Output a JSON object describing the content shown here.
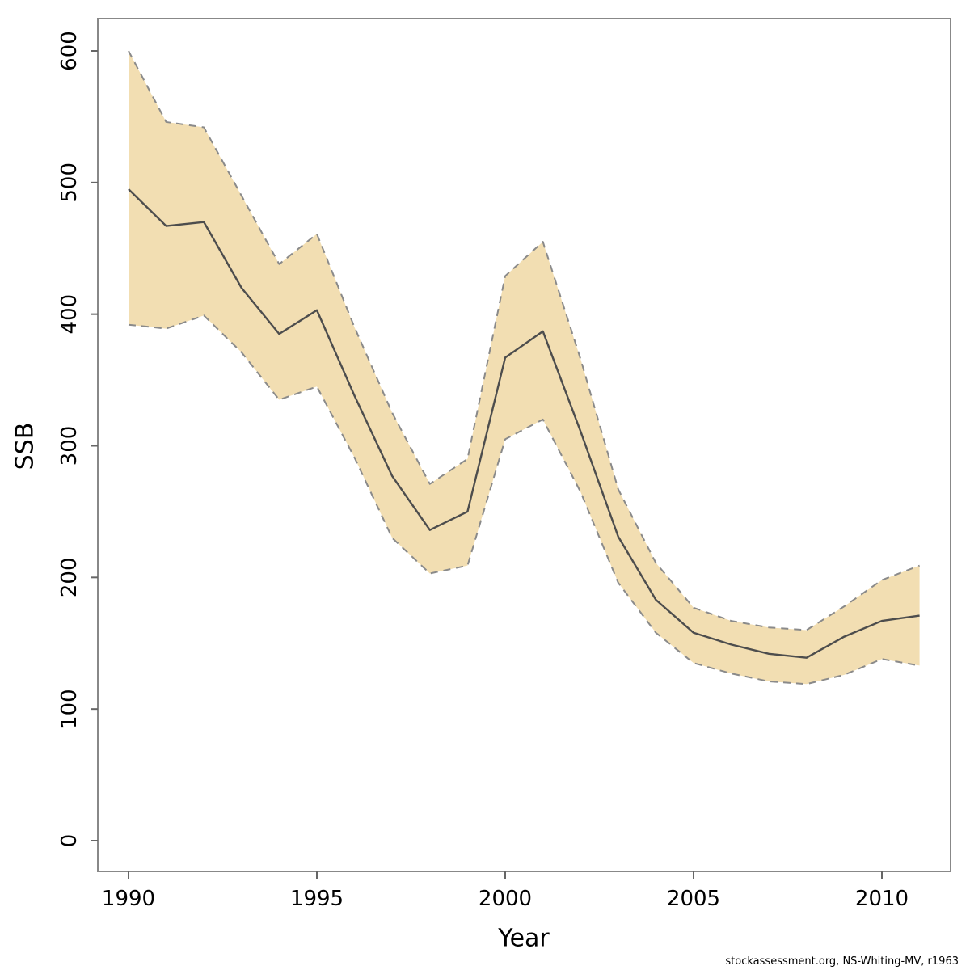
{
  "footer": {
    "text": "stockassessment.org, NS-Whiting-MV, r1963"
  },
  "chart_data": {
    "type": "line",
    "title": "",
    "xlabel": "Year",
    "ylabel": "SSB",
    "x": [
      1990,
      1991,
      1992,
      1993,
      1994,
      1995,
      1996,
      1997,
      1998,
      1999,
      2000,
      2001,
      2002,
      2003,
      2004,
      2005,
      2006,
      2007,
      2008,
      2009,
      2010,
      2011
    ],
    "series": [
      {
        "name": "median",
        "style": "solid",
        "color": "#4d4d4d",
        "width": 2.4,
        "values": [
          495,
          467,
          470,
          420,
          385,
          403,
          338,
          277,
          236,
          250,
          367,
          387,
          311,
          231,
          183,
          158,
          149,
          142,
          139,
          155,
          167,
          171
        ]
      },
      {
        "name": "upper-confidence",
        "style": "dashed",
        "color": "#8a8a8a",
        "width": 2,
        "values": [
          600,
          546,
          542,
          490,
          438,
          461,
          390,
          325,
          271,
          290,
          429,
          455,
          366,
          267,
          211,
          177,
          167,
          162,
          160,
          178,
          198,
          209
        ]
      },
      {
        "name": "lower-confidence",
        "style": "dashed",
        "color": "#8a8a8a",
        "width": 2,
        "values": [
          392,
          389,
          399,
          371,
          335,
          345,
          291,
          230,
          203,
          209,
          305,
          320,
          265,
          196,
          158,
          135,
          127,
          121,
          119,
          126,
          138,
          133
        ]
      }
    ],
    "band": {
      "fill": "#f2deb2",
      "upper_series": "upper-confidence",
      "lower_series": "lower-confidence"
    },
    "x_ticks": [
      1990,
      1995,
      2000,
      2005,
      2010
    ],
    "y_ticks": [
      0,
      100,
      200,
      300,
      400,
      500,
      600
    ],
    "xlim": [
      1990,
      2011
    ],
    "ylim": [
      0,
      600
    ],
    "grid": false,
    "legend": false,
    "frame_color": "#888888",
    "tick_color": "#666666",
    "tick_label_color": "#000000",
    "tick_label_size": 26
  }
}
